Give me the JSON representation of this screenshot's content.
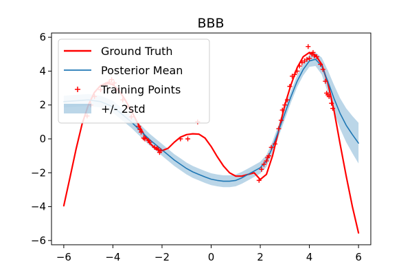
{
  "chart_data": {
    "type": "line",
    "title": "BBB",
    "xlabel": "",
    "ylabel": "",
    "xlim": [
      -6.5,
      6.5
    ],
    "ylim": [
      -6.25,
      6.25
    ],
    "xticks": [
      -6,
      -4,
      -2,
      0,
      2,
      4,
      6
    ],
    "xtick_labels": [
      "−6",
      "−4",
      "−2",
      "0",
      "2",
      "4",
      "6"
    ],
    "yticks": [
      -6,
      -4,
      -2,
      0,
      2,
      4,
      6
    ],
    "ytick_labels": [
      "−6",
      "−4",
      "−2",
      "0",
      "2",
      "4",
      "6"
    ],
    "grid": false,
    "legend_position": "upper-left",
    "series": [
      {
        "name": "Ground Truth",
        "kind": "line",
        "color": "#ff0000",
        "x": [
          -6,
          -5.75,
          -5.5,
          -5.25,
          -5,
          -4.75,
          -4.5,
          -4.25,
          -4,
          -3.75,
          -3.5,
          -3.25,
          -3,
          -2.75,
          -2.5,
          -2.25,
          -2,
          -1.75,
          -1.5,
          -1.25,
          -1,
          -0.75,
          -0.5,
          -0.25,
          0,
          0.25,
          0.5,
          0.75,
          1,
          1.25,
          1.5,
          1.75,
          2,
          2.25,
          2.5,
          2.75,
          3,
          3.25,
          3.5,
          3.75,
          4,
          4.25,
          4.5,
          4.75,
          5,
          5.25,
          5.5,
          5.75,
          6
        ],
        "y": [
          -3.95,
          -2.3,
          -0.6,
          0.9,
          2.0,
          2.75,
          3.15,
          3.3,
          3.2,
          2.85,
          2.3,
          1.65,
          0.95,
          0.3,
          -0.25,
          -0.6,
          -0.7,
          -0.55,
          -0.2,
          0.1,
          0.25,
          0.3,
          0.28,
          0.05,
          -0.45,
          -1.05,
          -1.6,
          -2.0,
          -2.2,
          -2.2,
          -2.1,
          -2.0,
          -2.4,
          -2.1,
          -1.0,
          0.5,
          2.0,
          3.2,
          4.2,
          4.85,
          5.1,
          4.95,
          4.4,
          3.3,
          1.7,
          -0.3,
          -2.2,
          -4.0,
          -5.55
        ]
      },
      {
        "name": "Posterior Mean",
        "kind": "line",
        "color": "#1f77b4",
        "x": [
          -6,
          -5.5,
          -5,
          -4.5,
          -4,
          -3.75,
          -3.5,
          -3.25,
          -3,
          -2.75,
          -2.5,
          -2.25,
          -2,
          -1.75,
          -1.5,
          -1.25,
          -1,
          -0.75,
          -0.5,
          -0.25,
          0,
          0.25,
          0.5,
          0.75,
          1,
          1.25,
          1.5,
          1.75,
          2,
          2.25,
          2.5,
          2.75,
          3,
          3.25,
          3.5,
          3.75,
          4,
          4.25,
          4.5,
          4.75,
          5,
          5.25,
          5.5,
          5.75,
          6
        ],
        "y": [
          2.2,
          2.25,
          2.3,
          2.2,
          1.9,
          1.6,
          1.3,
          1.0,
          0.65,
          0.3,
          -0.05,
          -0.35,
          -0.65,
          -0.95,
          -1.25,
          -1.5,
          -1.75,
          -1.95,
          -2.1,
          -2.25,
          -2.38,
          -2.45,
          -2.5,
          -2.5,
          -2.45,
          -2.3,
          -2.1,
          -1.9,
          -1.7,
          -1.3,
          -0.5,
          0.5,
          1.5,
          2.5,
          3.4,
          4.1,
          4.6,
          4.7,
          4.3,
          3.4,
          2.4,
          1.5,
          0.8,
          0.25,
          -0.25
        ],
        "band": {
          "name": "+/- 2std",
          "color": "#1f77b4",
          "opacity": 0.3,
          "halfwidth": [
            0.35,
            0.35,
            0.35,
            0.35,
            0.35,
            0.35,
            0.35,
            0.35,
            0.35,
            0.35,
            0.35,
            0.35,
            0.35,
            0.35,
            0.35,
            0.35,
            0.35,
            0.35,
            0.35,
            0.35,
            0.35,
            0.35,
            0.35,
            0.35,
            0.35,
            0.35,
            0.35,
            0.35,
            0.35,
            0.35,
            0.35,
            0.35,
            0.35,
            0.35,
            0.35,
            0.35,
            0.35,
            0.4,
            0.5,
            0.65,
            0.8,
            0.9,
            1.0,
            1.1,
            1.2
          ]
        }
      },
      {
        "name": "Training Points",
        "kind": "scatter",
        "color": "#ff0000",
        "marker": "+",
        "points": [
          [
            -5.05,
            1.35
          ],
          [
            -4.9,
            2.0
          ],
          [
            -4.75,
            2.5
          ],
          [
            -4.5,
            2.9
          ],
          [
            -4.3,
            3.2
          ],
          [
            -4.15,
            3.35
          ],
          [
            -4.05,
            3.5
          ],
          [
            -3.95,
            3.3
          ],
          [
            -3.85,
            2.9
          ],
          [
            -3.6,
            2.3
          ],
          [
            -3.4,
            1.9
          ],
          [
            -3.25,
            1.3
          ],
          [
            -2.95,
            0.75
          ],
          [
            -2.9,
            0.55
          ],
          [
            -2.85,
            0.4
          ],
          [
            -2.75,
            0.05
          ],
          [
            -2.7,
            0.0
          ],
          [
            -2.55,
            -0.1
          ],
          [
            -2.5,
            -0.2
          ],
          [
            -2.3,
            -0.5
          ],
          [
            -2.2,
            -0.55
          ],
          [
            -2.15,
            -0.65
          ],
          [
            -2.1,
            -0.8
          ],
          [
            -2.05,
            -0.7
          ],
          [
            -1.25,
            0.0
          ],
          [
            -0.95,
            0.0
          ],
          [
            -0.55,
            1.0
          ],
          [
            1.95,
            -2.45
          ],
          [
            2.05,
            -1.8
          ],
          [
            2.15,
            -1.5
          ],
          [
            2.25,
            -1.3
          ],
          [
            2.3,
            -1.1
          ],
          [
            2.35,
            -1.0
          ],
          [
            2.45,
            -0.5
          ],
          [
            2.6,
            -0.3
          ],
          [
            2.75,
            0.6
          ],
          [
            2.85,
            1.1
          ],
          [
            2.9,
            1.7
          ],
          [
            3.0,
            2.0
          ],
          [
            3.1,
            2.3
          ],
          [
            3.2,
            3.1
          ],
          [
            3.3,
            3.7
          ],
          [
            3.4,
            3.8
          ],
          [
            3.5,
            4.0
          ],
          [
            3.6,
            4.3
          ],
          [
            3.7,
            4.5
          ],
          [
            3.8,
            4.6
          ],
          [
            3.9,
            4.7
          ],
          [
            3.95,
            5.45
          ],
          [
            4.0,
            4.75
          ],
          [
            4.1,
            5.0
          ],
          [
            4.15,
            5.1
          ],
          [
            4.2,
            4.9
          ],
          [
            4.3,
            4.85
          ],
          [
            4.45,
            4.4
          ],
          [
            4.55,
            4.1
          ],
          [
            4.65,
            3.4
          ],
          [
            4.7,
            2.7
          ],
          [
            4.75,
            2.6
          ],
          [
            4.8,
            2.5
          ],
          [
            4.9,
            2.1
          ],
          [
            4.95,
            1.8
          ]
        ]
      }
    ],
    "legend": [
      {
        "label": "Ground Truth",
        "kind": "line",
        "color": "#ff0000"
      },
      {
        "label": "Posterior Mean",
        "kind": "line",
        "color": "#1f77b4"
      },
      {
        "label": "Training Points",
        "kind": "marker",
        "color": "#ff0000"
      },
      {
        "label": "+/- 2std",
        "kind": "patch",
        "color": "#1f77b4"
      }
    ]
  }
}
